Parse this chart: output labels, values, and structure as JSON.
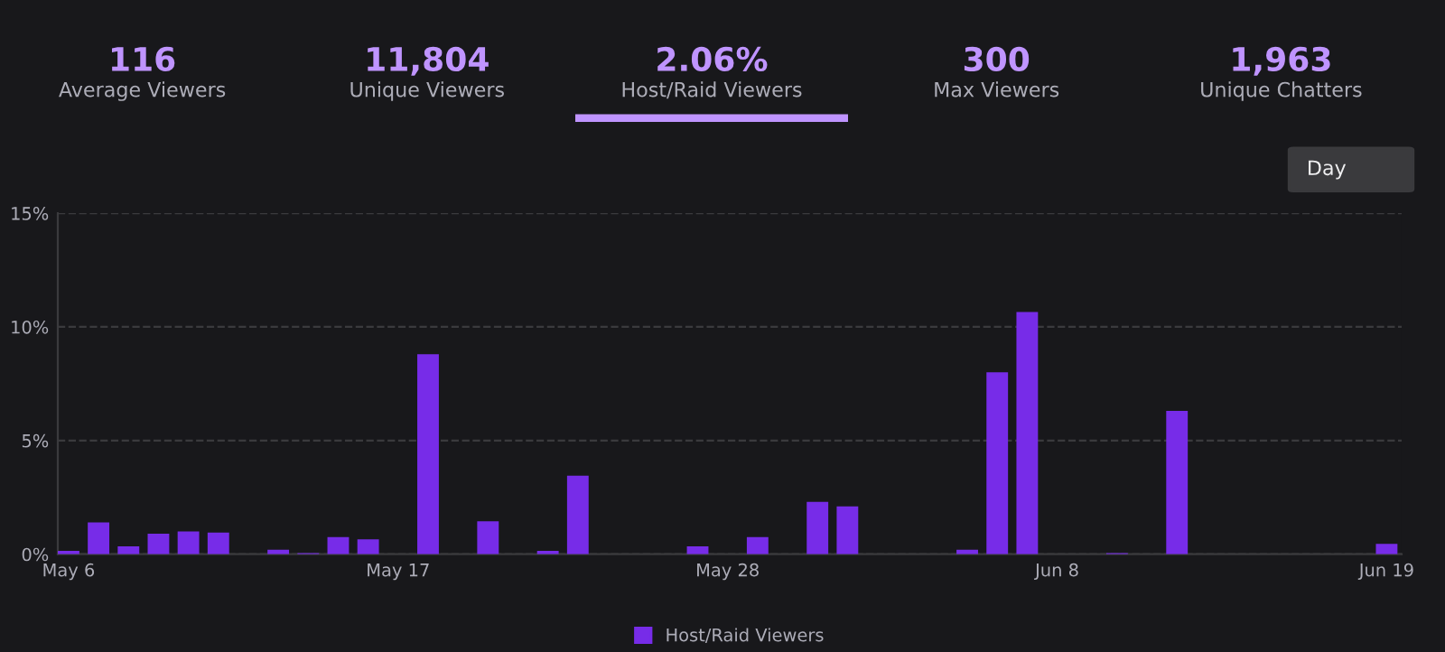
{
  "chart_data": {
    "type": "bar",
    "categories": [
      "May 6",
      null,
      null,
      null,
      null,
      null,
      null,
      null,
      null,
      null,
      null,
      "May 17",
      null,
      null,
      null,
      null,
      null,
      null,
      null,
      null,
      null,
      null,
      "May 28",
      null,
      null,
      null,
      null,
      null,
      null,
      null,
      null,
      null,
      null,
      "Jun 8",
      null,
      null,
      null,
      null,
      null,
      null,
      null,
      null,
      null,
      null,
      "Jun 19"
    ],
    "series": [
      {
        "name": "Host/Raid Viewers",
        "color": "#772ce8",
        "values": [
          0.15,
          1.4,
          0.35,
          0.9,
          1.0,
          0.95,
          null,
          0.2,
          0.05,
          0.75,
          0.65,
          null,
          8.8,
          null,
          1.45,
          null,
          0.15,
          3.45,
          null,
          null,
          null,
          0.35,
          null,
          0.75,
          null,
          2.3,
          2.1,
          null,
          null,
          null,
          0.2,
          8.0,
          10.65,
          null,
          null,
          0.05,
          null,
          6.3,
          null,
          null,
          null,
          null,
          null,
          null,
          0.45
        ]
      }
    ],
    "ylim": [
      0,
      15
    ],
    "yticks": [
      {
        "value": 0,
        "label": "0%"
      },
      {
        "value": 5,
        "label": "5%"
      },
      {
        "value": 10,
        "label": "10%"
      },
      {
        "value": 15,
        "label": "15%"
      }
    ],
    "grid": "y",
    "legend": "bottom",
    "annotations": [
      "116",
      "Average Viewers",
      "11,804",
      "Unique Viewers",
      "2.06%",
      "Host/Raid Viewers",
      "300",
      "Max Viewers",
      "1,963",
      "Unique Chatters",
      "Day"
    ]
  }
}
